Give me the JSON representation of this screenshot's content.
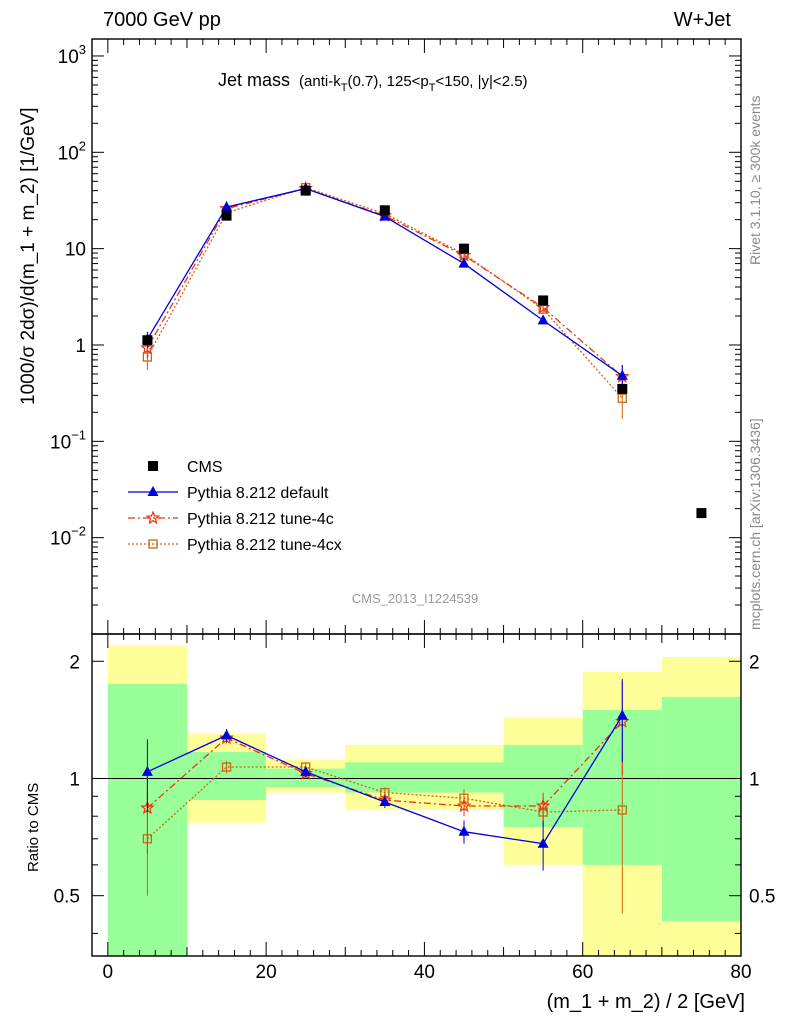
{
  "header": {
    "left": "7000 GeV pp",
    "right": "W+Jet"
  },
  "plot_title": {
    "main": "Jet mass",
    "detail_a": "(anti-k",
    "detail_sub1": "T",
    "detail_b": "(0.7), 125<p",
    "detail_sub2": "T",
    "detail_c": "<150, |y|<2.5)"
  },
  "side_text": {
    "rivet": "Rivet 3.1.10, ≥ 300k events",
    "mcplots": "mcplots.cern.ch [arXiv:1306.3436]"
  },
  "analysis_id": "CMS_2013_I1224539",
  "colors": {
    "cms": "#000000",
    "default": "#0000dd",
    "tune4c": "#ee3311",
    "tune4cx": "#cc6611",
    "band_inner": "#99ff99",
    "band_outer": "#ffff99"
  },
  "chart_data": [
    {
      "type": "scatter",
      "panel": "main",
      "ylabel": "1000/σ 2dσ)/d(m_1 + m_2) [1/GeV]",
      "yscale": "log",
      "ylim": [
        0.001,
        1500
      ],
      "xlim": [
        -2,
        80
      ],
      "yticks": [
        {
          "v": 1000,
          "base": "10",
          "exp": "3"
        },
        {
          "v": 100,
          "base": "10",
          "exp": "2"
        },
        {
          "v": 10,
          "base": "10",
          "exp": ""
        },
        {
          "v": 1,
          "base": "1",
          "exp": ""
        },
        {
          "v": 0.1,
          "base": "10",
          "exp": "−1"
        },
        {
          "v": 0.01,
          "base": "10",
          "exp": "−2"
        }
      ],
      "legend_placement": "lower-left",
      "series": [
        {
          "name": "CMS",
          "style": "square",
          "x": [
            5,
            15,
            25,
            35,
            45,
            55,
            65,
            75
          ],
          "y": [
            1.12,
            22.0,
            40.0,
            25.0,
            10.0,
            2.9,
            0.35,
            0.018
          ]
        },
        {
          "name": "Pythia 8.212 default",
          "style": "triangle",
          "x": [
            5,
            15,
            25,
            35,
            45,
            55,
            65
          ],
          "y": [
            1.15,
            27.0,
            42.0,
            21.5,
            7.0,
            1.8,
            0.48
          ],
          "err": [
            0.22,
            1.0,
            1.0,
            0.5,
            0.3,
            0.15,
            0.14
          ]
        },
        {
          "name": "Pythia 8.212 tune-4c",
          "style": "star",
          "x": [
            5,
            15,
            25,
            35,
            45,
            55,
            65
          ],
          "y": [
            0.93,
            26.0,
            42.0,
            22.0,
            8.5,
            2.45,
            0.47
          ],
          "err": [
            0.2,
            1.0,
            1.0,
            0.5,
            0.35,
            0.2,
            0.15
          ]
        },
        {
          "name": "Pythia 8.212 tune-4cx",
          "style": "open-square",
          "x": [
            5,
            15,
            25,
            35,
            45,
            55,
            65
          ],
          "y": [
            0.75,
            23.5,
            43.0,
            23.0,
            8.8,
            2.35,
            0.28
          ],
          "err": [
            0.2,
            1.0,
            1.0,
            0.5,
            0.35,
            0.2,
            0.11
          ]
        }
      ]
    },
    {
      "type": "line",
      "panel": "ratio",
      "ylabel": "Ratio to CMS",
      "xlabel": "(m_1 + m_2) / 2 [GeV]",
      "yscale": "log",
      "ylim": [
        0.35,
        2.35
      ],
      "xlim": [
        -2,
        80
      ],
      "yticks": [
        {
          "v": 2,
          "label": "2"
        },
        {
          "v": 1,
          "label": "1"
        },
        {
          "v": 0.5,
          "label": "0.5"
        }
      ],
      "xticks": [
        0,
        20,
        40,
        60,
        80
      ],
      "bands": [
        {
          "x0": 0,
          "x1": 10,
          "inner": [
            0.35,
            1.75
          ],
          "outer": [
            0.35,
            2.2
          ]
        },
        {
          "x0": 10,
          "x1": 20,
          "inner": [
            0.88,
            1.17
          ],
          "outer": [
            0.77,
            1.3
          ]
        },
        {
          "x0": 20,
          "x1": 30,
          "inner": [
            0.95,
            1.06
          ],
          "outer": [
            0.92,
            1.12
          ]
        },
        {
          "x0": 30,
          "x1": 50,
          "inner": [
            0.92,
            1.1
          ],
          "outer": [
            0.83,
            1.22
          ]
        },
        {
          "x0": 50,
          "x1": 60,
          "inner": [
            0.75,
            1.22
          ],
          "outer": [
            0.6,
            1.43
          ]
        },
        {
          "x0": 60,
          "x1": 70,
          "inner": [
            0.6,
            1.5
          ],
          "outer": [
            0.35,
            1.88
          ]
        },
        {
          "x0": 70,
          "x1": 80,
          "inner": [
            0.43,
            1.62
          ],
          "outer": [
            0.35,
            2.05
          ]
        }
      ],
      "series": [
        {
          "name": "Pythia 8.212 default",
          "x": [
            5,
            15,
            25,
            35,
            45,
            55,
            65
          ],
          "y": [
            1.04,
            1.29,
            1.04,
            0.87,
            0.73,
            0.68,
            1.45
          ],
          "err": [
            0.22,
            0.05,
            0.03,
            0.03,
            0.05,
            0.1,
            0.35
          ]
        },
        {
          "name": "Pythia 8.212 tune-4c",
          "x": [
            5,
            15,
            25,
            35,
            45,
            55,
            65
          ],
          "y": [
            0.84,
            1.27,
            1.03,
            0.88,
            0.85,
            0.85,
            1.4
          ],
          "err": [
            0.2,
            0.04,
            0.03,
            0.03,
            0.05,
            0.07,
            0.38
          ]
        },
        {
          "name": "Pythia 8.212 tune-4cx",
          "x": [
            5,
            15,
            25,
            35,
            45,
            55,
            65
          ],
          "y": [
            0.7,
            1.07,
            1.07,
            0.92,
            0.89,
            0.82,
            0.83
          ],
          "err": [
            0.2,
            0.04,
            0.03,
            0.03,
            0.05,
            0.07,
            0.38
          ]
        }
      ]
    }
  ]
}
